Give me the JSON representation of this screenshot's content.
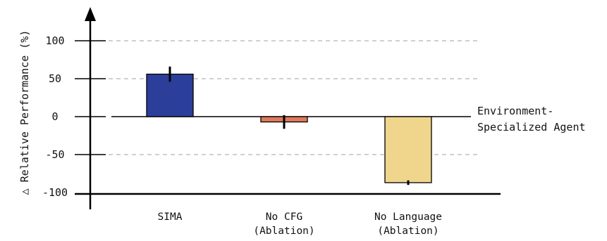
{
  "chart_data": {
    "type": "bar",
    "title": "",
    "ylabel": "△ Relative Performance (%)",
    "xlabel": "",
    "ylim": [
      -100,
      100
    ],
    "yticks": [
      {
        "value": 100,
        "label": "100"
      },
      {
        "value": 50,
        "label": "50"
      },
      {
        "value": 0,
        "label": "0"
      },
      {
        "value": -50,
        "label": "-50"
      },
      {
        "value": -100,
        "label": "-100"
      }
    ],
    "grid": "dashed",
    "categories": [
      {
        "line1": "SIMA",
        "line2": ""
      },
      {
        "line1": "No CFG",
        "line2": "(Ablation)"
      },
      {
        "line1": "No Language",
        "line2": "(Ablation)"
      }
    ],
    "values": [
      56,
      -7,
      -87
    ],
    "errors": [
      [
        46,
        66
      ],
      [
        -16,
        2
      ],
      [
        -90,
        -84
      ]
    ],
    "colors": [
      "#2b3f9a",
      "#e07a5a",
      "#f0d58c"
    ],
    "reference_line": {
      "value": 0,
      "label_line1": "Environment-",
      "label_line2": "Specialized Agent"
    }
  }
}
